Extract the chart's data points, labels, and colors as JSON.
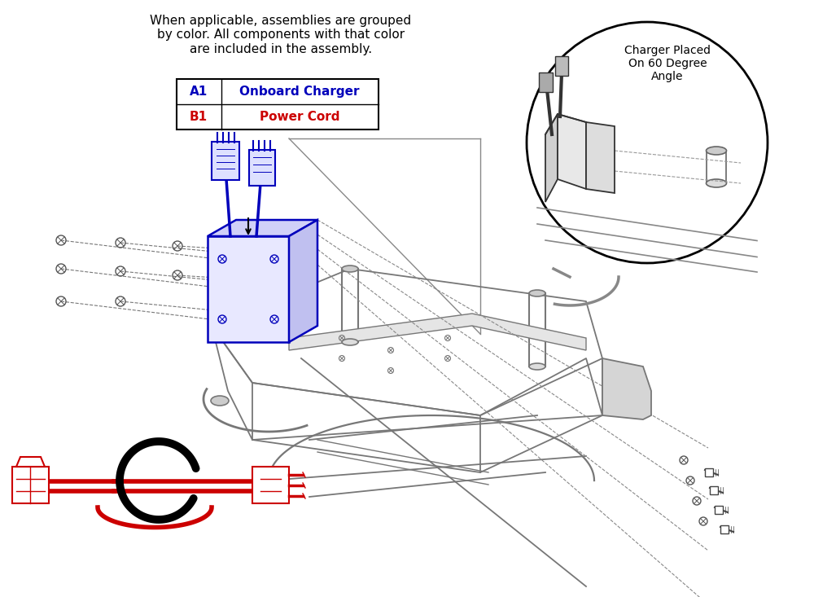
{
  "title_text": "When applicable, assemblies are grouped\nby color. All components with that color\nare included in the assembly.",
  "legend_items": [
    {
      "code": "A1",
      "label": "Onboard Charger",
      "color": "#0000cc"
    },
    {
      "code": "B1",
      "label": "Power Cord",
      "color": "#cc0000"
    }
  ],
  "inset_text": "Charger Placed\nOn 60 Degree\nAngle",
  "bg_color": "#ffffff",
  "blue_color": "#0000bb",
  "red_color": "#cc0000",
  "frame_color": "#666666",
  "dark_color": "#333333"
}
